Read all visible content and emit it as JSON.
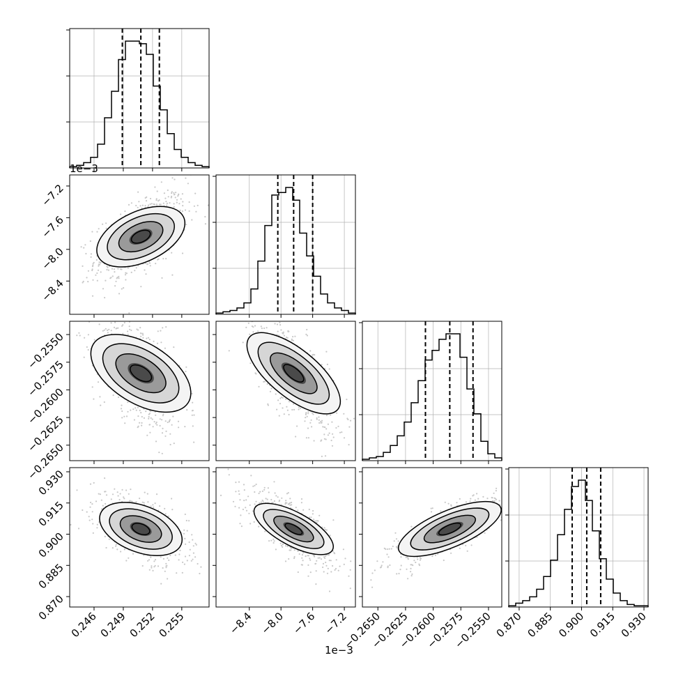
{
  "chart_data": {
    "type": "corner",
    "parameters": [
      {
        "range": [
          0.2435,
          0.2578
        ],
        "ticks": [
          0.246,
          0.249,
          0.252,
          0.255
        ],
        "tick_labels": [
          "0.246",
          "0.249",
          "0.252",
          "0.255"
        ],
        "median": 0.2508,
        "q16": 0.2489,
        "q84": 0.2527
      },
      {
        "range": [
          -8.82,
          -7.06
        ],
        "ticks": [
          -8.4,
          -8.0,
          -7.6,
          -7.2
        ],
        "tick_labels": [
          "−8.4",
          "−8.0",
          "−7.6",
          "−7.2"
        ],
        "offset": "1e−3",
        "median": -7.84,
        "q16": -8.04,
        "q84": -7.6
      },
      {
        "range": [
          -0.2664,
          -0.2538
        ],
        "ticks": [
          -0.265,
          -0.2625,
          -0.26,
          -0.2575,
          -0.255
        ],
        "tick_labels": [
          "−0.2650",
          "−0.2625",
          "−0.2600",
          "−0.2575",
          "−0.2550"
        ],
        "median": -0.2585,
        "q16": -0.2607,
        "q84": -0.2564
      },
      {
        "range": [
          0.865,
          0.932
        ],
        "ticks": [
          0.87,
          0.885,
          0.9,
          0.915,
          0.93
        ],
        "tick_labels": [
          "0.870",
          "0.885",
          "0.900",
          "0.915",
          "0.930"
        ],
        "median": 0.9025,
        "q16": 0.8955,
        "q84": 0.9092
      }
    ],
    "histograms": [
      [
        1,
        2,
        4,
        8,
        18,
        38,
        58,
        82,
        96,
        96,
        94,
        86,
        62,
        44,
        26,
        14,
        8,
        4,
        2,
        1
      ],
      [
        1,
        2,
        3,
        5,
        9,
        20,
        42,
        70,
        94,
        96,
        100,
        90,
        64,
        46,
        30,
        16,
        9,
        5,
        3,
        1
      ],
      [
        1,
        2,
        3,
        6,
        11,
        18,
        28,
        42,
        58,
        73,
        80,
        88,
        92,
        92,
        75,
        52,
        34,
        14,
        5,
        2
      ],
      [
        1,
        3,
        5,
        8,
        14,
        24,
        37,
        57,
        77,
        95,
        100,
        84,
        60,
        38,
        22,
        11,
        5,
        2,
        1,
        1
      ]
    ],
    "colors": {
      "line": "#000000",
      "grid": "#b0b0b0",
      "scatter": "#c8c8c8"
    },
    "grid": true
  }
}
